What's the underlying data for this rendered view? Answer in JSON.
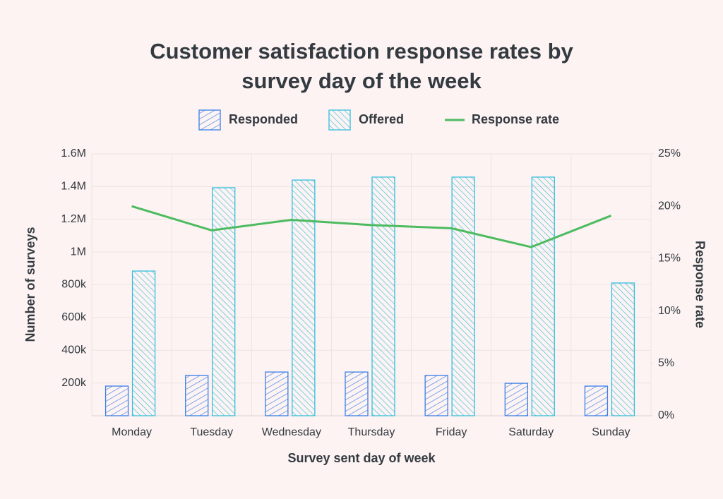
{
  "chart_data": {
    "type": "bar-line",
    "title": "Customer satisfaction response rates by survey day of the week",
    "xlabel": "Survey sent day of week",
    "ylabel": "Number of surveys",
    "y2label": "Response rate",
    "categories": [
      "Monday",
      "Tuesday",
      "Wednesday",
      "Thursday",
      "Friday",
      "Saturday",
      "Sunday"
    ],
    "series": [
      {
        "name": "Responded",
        "type": "bar",
        "color": "#3b7fe6",
        "values": [
          181000,
          246000,
          267000,
          267000,
          246000,
          198000,
          181000
        ]
      },
      {
        "name": "Offered",
        "type": "bar",
        "color": "#35bfdc",
        "values": [
          884000,
          1393000,
          1440000,
          1458000,
          1458000,
          1458000,
          811000
        ]
      },
      {
        "name": "Response rate",
        "type": "line",
        "axis": "y2",
        "color": "#4dbb5f",
        "values": [
          20.0,
          17.7,
          18.7,
          18.2,
          17.9,
          16.1,
          19.1
        ]
      }
    ],
    "ylim": [
      0,
      1600000
    ],
    "yticks": [
      {
        "value": 200000,
        "label": "200k"
      },
      {
        "value": 400000,
        "label": "400k"
      },
      {
        "value": 600000,
        "label": "600k"
      },
      {
        "value": 800000,
        "label": "800k"
      },
      {
        "value": 1000000,
        "label": "1M"
      },
      {
        "value": 1200000,
        "label": "1.2M"
      },
      {
        "value": 1400000,
        "label": "1.4M"
      },
      {
        "value": 1600000,
        "label": "1.6M"
      }
    ],
    "y2lim": [
      0,
      25
    ],
    "y2ticks": [
      {
        "value": 0,
        "label": "0%"
      },
      {
        "value": 5,
        "label": "5%"
      },
      {
        "value": 10,
        "label": "10%"
      },
      {
        "value": 15,
        "label": "15%"
      },
      {
        "value": 20,
        "label": "20%"
      },
      {
        "value": 25,
        "label": "25%"
      }
    ],
    "grid": true,
    "legend": "top"
  }
}
